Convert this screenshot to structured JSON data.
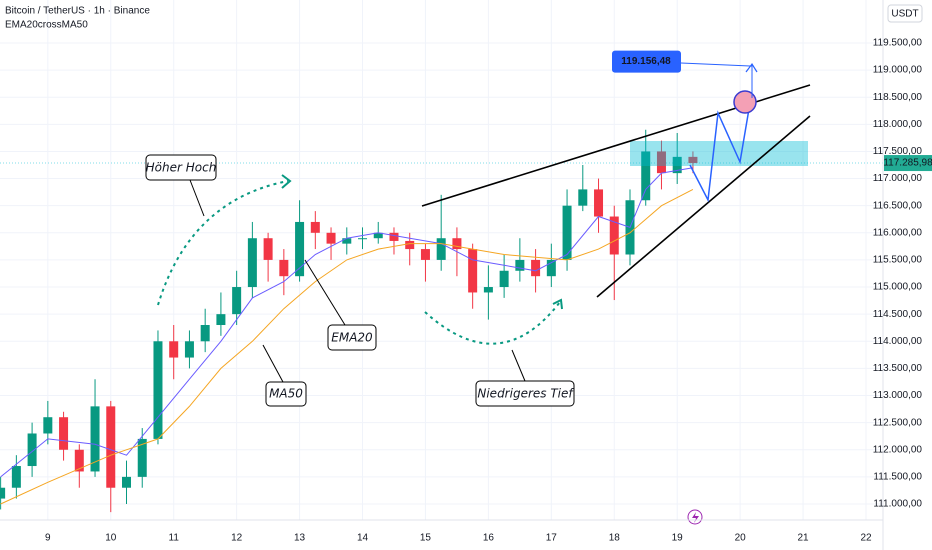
{
  "chart_data": {
    "type": "candlestick",
    "title": "Bitcoin / TetherUS · 1h · Binance",
    "indicator": "EMA20crossMA50",
    "currency": "USDT",
    "up_color": "#089981",
    "down_color": "#f23645",
    "grid": true,
    "xlim": [
      8.24,
      22.27
    ],
    "ylim": [
      110705,
      120292
    ],
    "xticks": [
      9,
      10,
      11,
      12,
      13,
      14,
      15,
      16,
      17,
      18,
      19,
      20,
      21,
      22
    ],
    "yticks": [
      {
        "value": 111000,
        "label": "111.000,00"
      },
      {
        "value": 111500,
        "label": "111.500,00"
      },
      {
        "value": 112000,
        "label": "112.000,00"
      },
      {
        "value": 112500,
        "label": "112.500,00"
      },
      {
        "value": 113000,
        "label": "113.000,00"
      },
      {
        "value": 113500,
        "label": "113.500,00"
      },
      {
        "value": 114000,
        "label": "114.000,00"
      },
      {
        "value": 114500,
        "label": "114.500,00"
      },
      {
        "value": 115000,
        "label": "115.000,00"
      },
      {
        "value": 115500,
        "label": "115.500,00"
      },
      {
        "value": 116000,
        "label": "116.000,00"
      },
      {
        "value": 116500,
        "label": "116.500,00"
      },
      {
        "value": 117000,
        "label": "117.000,00"
      },
      {
        "value": 117500,
        "label": "117.500,00"
      },
      {
        "value": 118000,
        "label": "118.000,00"
      },
      {
        "value": 118500,
        "label": "118.500,00"
      },
      {
        "value": 119000,
        "label": "119.000,00"
      },
      {
        "value": 119500,
        "label": "119.500,00"
      }
    ],
    "candles": {
      "x": [
        8.25,
        8.5,
        8.75,
        9,
        9.25,
        9.5,
        9.75,
        10,
        10.25,
        10.5,
        10.75,
        11,
        11.25,
        11.5,
        11.75,
        12,
        12.25,
        12.5,
        12.75,
        13,
        13.25,
        13.5,
        13.75,
        14,
        14.25,
        14.5,
        14.75,
        15,
        15.25,
        15.5,
        15.75,
        16,
        16.25,
        16.5,
        16.75,
        17,
        17.25,
        17.5,
        17.75,
        18,
        18.25,
        18.5,
        18.75,
        19,
        19.25
      ],
      "open": [
        111100,
        111300,
        111700,
        112300,
        112600,
        112000,
        111600,
        112800,
        111300,
        111500,
        112200,
        114000,
        113700,
        114000,
        114300,
        114500,
        115000,
        115900,
        115500,
        115200,
        116200,
        116000,
        115800,
        115900,
        115900,
        116000,
        115850,
        115700,
        115500,
        115900,
        115700,
        114900,
        115000,
        115300,
        115500,
        115200,
        115500,
        116500,
        116800,
        116300,
        115600,
        116600,
        117500,
        117100,
        117400
      ],
      "high": [
        111500,
        111900,
        112500,
        112900,
        112700,
        112100,
        113300,
        112900,
        111800,
        112400,
        114200,
        114300,
        114200,
        114600,
        114900,
        115300,
        116200,
        116000,
        115700,
        116600,
        116400,
        116100,
        116100,
        116100,
        116200,
        116100,
        116000,
        115800,
        116700,
        116100,
        115800,
        115400,
        115600,
        115900,
        115700,
        115800,
        116800,
        117250,
        117000,
        116500,
        116800,
        117900,
        117700,
        117840,
        117500
      ],
      "low": [
        110900,
        111100,
        111500,
        112100,
        111800,
        111300,
        111500,
        110850,
        111000,
        111300,
        112100,
        113300,
        113500,
        113800,
        114100,
        114300,
        114800,
        115100,
        114850,
        115100,
        115700,
        115500,
        115600,
        115700,
        115800,
        115600,
        115400,
        115100,
        115300,
        115200,
        114600,
        114400,
        114800,
        115100,
        114900,
        115000,
        115300,
        116400,
        116000,
        114760,
        115400,
        116500,
        116800,
        116900,
        117100
      ],
      "close": [
        111300,
        111700,
        112300,
        112600,
        112000,
        111600,
        112800,
        111300,
        111500,
        112200,
        114000,
        113700,
        114000,
        114300,
        114500,
        115000,
        115900,
        115500,
        115200,
        116200,
        116000,
        115800,
        115900,
        115900,
        116000,
        115850,
        115700,
        115500,
        115900,
        115700,
        114900,
        115000,
        115300,
        115500,
        115200,
        115500,
        116500,
        116800,
        116300,
        115600,
        116600,
        117500,
        117100,
        117400,
        117286
      ]
    },
    "series": [
      {
        "name": "EMA20",
        "color": "#6a5cff",
        "x": [
          8.25,
          9,
          9.75,
          10.25,
          10.75,
          11.25,
          11.75,
          12.25,
          12.75,
          13.25,
          13.75,
          14.25,
          14.75,
          15.25,
          15.75,
          16.25,
          16.75,
          17.25,
          17.75,
          18.25,
          18.5,
          18.75,
          19.25
        ],
        "values": [
          111500,
          112200,
          112100,
          111900,
          112600,
          113300,
          114000,
          114800,
          115100,
          115600,
          115900,
          116000,
          115900,
          115800,
          115500,
          115400,
          115300,
          115600,
          116300,
          116100,
          116800,
          117100,
          117200
        ]
      },
      {
        "name": "MA50",
        "color": "#f5a623",
        "x": [
          8.25,
          9,
          10,
          10.75,
          11.25,
          11.75,
          12.25,
          12.75,
          13.25,
          13.75,
          14.25,
          14.75,
          15.25,
          15.75,
          16.25,
          16.75,
          17.25,
          17.75,
          18.25,
          18.75,
          19.25
        ],
        "values": [
          111000,
          111400,
          111900,
          112200,
          112800,
          113500,
          114000,
          114600,
          115100,
          115500,
          115700,
          115800,
          115800,
          115700,
          115600,
          115550,
          115500,
          115700,
          116000,
          116500,
          116800
        ]
      }
    ],
    "last_price": {
      "value": 117285.98,
      "label": "117.285,98"
    },
    "target": {
      "value": 119156.48,
      "label": "119.156,48"
    },
    "annotations": {
      "higher_high": "Höher Hoch",
      "ema20": "EMA20",
      "ma50": "MA50",
      "lower_low": "Niedrigeres Tief"
    }
  }
}
